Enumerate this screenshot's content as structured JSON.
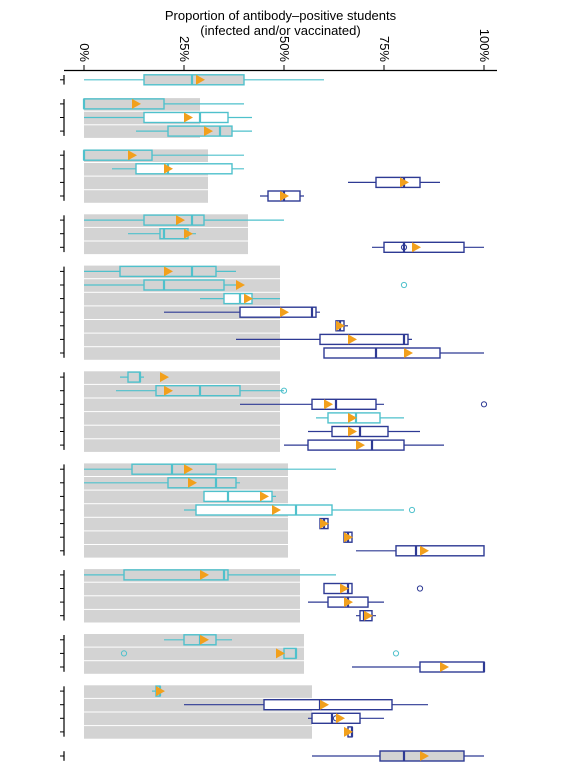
{
  "chart_data": {
    "type": "boxplot",
    "title": "Proportion of antibody–positive students",
    "subtitle": "(infected and/or vaccinated)",
    "xlim": [
      0,
      100
    ],
    "x_ticks": [
      {
        "value": 0,
        "label": "0%"
      },
      {
        "value": 25,
        "label": "25%"
      },
      {
        "value": 50,
        "label": "50%"
      },
      {
        "value": 75,
        "label": "75%"
      },
      {
        "value": 100,
        "label": "100%"
      }
    ],
    "colors": {
      "light_series": "#4fc1cc",
      "dark_series": "#2e3a94",
      "mean_marker": "#f2a01c",
      "shade": "#d3d3d3",
      "axis": "#000000"
    },
    "groups": [
      {
        "shade_to": 0,
        "rows": [
          {
            "series": "light",
            "shaded": true,
            "whisker": [
              0,
              60
            ],
            "q1": 15,
            "median": 27,
            "q3": 40,
            "mean": 29,
            "outliers": []
          }
        ]
      },
      {
        "shade_to": 29,
        "rows": [
          {
            "series": "light",
            "shaded": true,
            "whisker": [
              0,
              40
            ],
            "q1": 0,
            "median": 0,
            "q3": 20,
            "mean": 13,
            "outliers": []
          },
          {
            "series": "light",
            "shaded": false,
            "whisker": [
              0,
              42
            ],
            "q1": 15,
            "median": 29,
            "q3": 36,
            "mean": 26,
            "outliers": []
          },
          {
            "series": "light",
            "shaded": true,
            "whisker": [
              13,
              42
            ],
            "q1": 21,
            "median": 34,
            "q3": 37,
            "mean": 31,
            "outliers": []
          }
        ]
      },
      {
        "shade_to": 31,
        "rows": [
          {
            "series": "light",
            "shaded": true,
            "whisker": [
              0,
              40
            ],
            "q1": 0,
            "median": 0,
            "q3": 17,
            "mean": 12,
            "outliers": []
          },
          {
            "series": "light",
            "shaded": false,
            "whisker": [
              7,
              40
            ],
            "q1": 13,
            "median": 21,
            "q3": 37,
            "mean": 21,
            "outliers": []
          },
          {
            "series": "dark",
            "shaded": false,
            "whisker": [
              66,
              89
            ],
            "q1": 73,
            "median": 80,
            "q3": 84,
            "mean": 80,
            "outliers": []
          },
          {
            "series": "dark",
            "shaded": false,
            "whisker": [
              44,
              55
            ],
            "q1": 46,
            "median": 50,
            "q3": 54,
            "mean": 50,
            "outliers": [],
            "order": 3
          }
        ]
      },
      {
        "shade_to": 41,
        "rows": [
          {
            "series": "light",
            "shaded": true,
            "whisker": [
              0,
              50
            ],
            "q1": 15,
            "median": 27,
            "q3": 30,
            "mean": 24,
            "outliers": []
          },
          {
            "series": "light",
            "shaded": true,
            "whisker": [
              11,
              28
            ],
            "q1": 19,
            "median": 20,
            "q3": 26,
            "mean": 26,
            "outliers": []
          },
          {
            "series": "dark",
            "shaded": false,
            "whisker": [
              72,
              100
            ],
            "q1": 75,
            "median": 80,
            "q3": 95,
            "mean": 83,
            "outliers": [
              80
            ]
          }
        ]
      },
      {
        "shade_to": 49,
        "rows": [
          {
            "series": "light",
            "shaded": true,
            "whisker": [
              0,
              38
            ],
            "q1": 9,
            "median": 27,
            "q3": 33,
            "mean": 21,
            "outliers": []
          },
          {
            "series": "light",
            "shaded": true,
            "whisker": [
              0,
              38
            ],
            "q1": 15,
            "median": 20,
            "q3": 35,
            "mean": 39,
            "outliers": [
              80
            ]
          },
          {
            "series": "light",
            "shaded": false,
            "whisker": [
              29,
              49
            ],
            "q1": 35,
            "median": 39,
            "q3": 42,
            "mean": 41,
            "outliers": []
          },
          {
            "series": "dark",
            "shaded": false,
            "whisker": [
              20,
              59
            ],
            "q1": 39,
            "median": 57,
            "q3": 58,
            "mean": 50,
            "outliers": []
          },
          {
            "series": "dark",
            "shaded": false,
            "whisker": [
              63,
              66
            ],
            "q1": 63,
            "median": 64,
            "q3": 65,
            "mean": 64,
            "outliers": []
          },
          {
            "series": "dark",
            "shaded": false,
            "whisker": [
              38,
              82
            ],
            "q1": 59,
            "median": 80,
            "q3": 81,
            "mean": 67,
            "outliers": []
          },
          {
            "series": "dark",
            "shaded": false,
            "whisker": [
              60,
              100
            ],
            "q1": 60,
            "median": 73,
            "q3": 89,
            "mean": 81,
            "outliers": []
          }
        ]
      },
      {
        "shade_to": 49,
        "rows": [
          {
            "series": "light",
            "shaded": true,
            "whisker": [
              9,
              15
            ],
            "q1": 11,
            "median": 14,
            "q3": 14,
            "mean": 20,
            "outliers": []
          },
          {
            "series": "light",
            "shaded": true,
            "whisker": [
              8,
              50
            ],
            "q1": 18,
            "median": 29,
            "q3": 39,
            "mean": 21,
            "outliers": [
              50
            ]
          },
          {
            "series": "dark",
            "shaded": false,
            "whisker": [
              39,
              75
            ],
            "q1": 57,
            "median": 63,
            "q3": 73,
            "mean": 61,
            "outliers": [
              100
            ]
          },
          {
            "series": "light",
            "shaded": false,
            "whisker": [
              58,
              80
            ],
            "q1": 61,
            "median": 68,
            "q3": 74,
            "mean": 67,
            "outliers": []
          },
          {
            "series": "dark",
            "shaded": false,
            "whisker": [
              56,
              84
            ],
            "q1": 62,
            "median": 69,
            "q3": 76,
            "mean": 67,
            "outliers": []
          },
          {
            "series": "dark",
            "shaded": false,
            "whisker": [
              50,
              90
            ],
            "q1": 56,
            "median": 72,
            "q3": 80,
            "mean": 69,
            "outliers": []
          }
        ]
      },
      {
        "shade_to": 51,
        "rows": [
          {
            "series": "light",
            "shaded": true,
            "whisker": [
              0,
              63
            ],
            "q1": 12,
            "median": 22,
            "q3": 33,
            "mean": 26,
            "outliers": []
          },
          {
            "series": "light",
            "shaded": true,
            "whisker": [
              0,
              39
            ],
            "q1": 21,
            "median": 33,
            "q3": 38,
            "mean": 27,
            "outliers": []
          },
          {
            "series": "light",
            "shaded": false,
            "whisker": [
              30,
              48
            ],
            "q1": 30,
            "median": 36,
            "q3": 47,
            "mean": 45,
            "outliers": []
          },
          {
            "series": "light",
            "shaded": false,
            "whisker": [
              25,
              80
            ],
            "q1": 28,
            "median": 53,
            "q3": 62,
            "mean": 48,
            "outliers": [
              82
            ]
          },
          {
            "series": "dark",
            "shaded": false,
            "whisker": [
              59,
              61
            ],
            "q1": 59,
            "median": 60,
            "q3": 61,
            "mean": 60,
            "outliers": []
          },
          {
            "series": "dark",
            "shaded": false,
            "whisker": [
              65,
              67
            ],
            "q1": 65,
            "median": 66,
            "q3": 67,
            "mean": 66,
            "outliers": []
          },
          {
            "series": "dark",
            "shaded": false,
            "whisker": [
              68,
              100
            ],
            "q1": 78,
            "median": 83,
            "q3": 100,
            "mean": 85,
            "outliers": []
          }
        ]
      },
      {
        "shade_to": 54,
        "rows": [
          {
            "series": "light",
            "shaded": true,
            "whisker": [
              0,
              63
            ],
            "q1": 10,
            "median": 35,
            "q3": 36,
            "mean": 30,
            "outliers": []
          },
          {
            "series": "dark",
            "shaded": false,
            "whisker": [
              60,
              67
            ],
            "q1": 60,
            "median": 66,
            "q3": 67,
            "mean": 65,
            "outliers": [
              84
            ]
          },
          {
            "series": "dark",
            "shaded": false,
            "whisker": [
              56,
              75
            ],
            "q1": 61,
            "median": 66,
            "q3": 71,
            "mean": 66,
            "outliers": []
          },
          {
            "series": "dark",
            "shaded": false,
            "whisker": [
              68,
              73
            ],
            "q1": 69,
            "median": 70,
            "q3": 72,
            "mean": 71,
            "outliers": []
          }
        ]
      },
      {
        "shade_to": 55,
        "rows": [
          {
            "series": "light",
            "shaded": true,
            "whisker": [
              20,
              37
            ],
            "q1": 25,
            "median": 29,
            "q3": 33,
            "mean": 30,
            "outliers": []
          },
          {
            "series": "light",
            "shaded": true,
            "whisker": [
              48,
              53
            ],
            "q1": 50,
            "median": 53,
            "q3": 53,
            "mean": 49,
            "outliers": [
              10,
              78
            ]
          },
          {
            "series": "dark",
            "shaded": false,
            "whisker": [
              67,
              100
            ],
            "q1": 84,
            "median": 100,
            "q3": 100,
            "mean": 90,
            "outliers": []
          }
        ]
      },
      {
        "shade_to": 57,
        "rows": [
          {
            "series": "light",
            "shaded": true,
            "whisker": [
              17,
              20
            ],
            "q1": 18,
            "median": 19,
            "q3": 19,
            "mean": 19,
            "outliers": []
          },
          {
            "series": "dark",
            "shaded": false,
            "whisker": [
              25,
              86
            ],
            "q1": 45,
            "median": 59,
            "q3": 77,
            "mean": 60,
            "outliers": []
          },
          {
            "series": "dark",
            "shaded": false,
            "whisker": [
              56,
              75
            ],
            "q1": 57,
            "median": 62,
            "q3": 69,
            "mean": 64,
            "outliers": [
              63
            ]
          },
          {
            "series": "dark",
            "shaded": false,
            "whisker": [
              66,
              67
            ],
            "q1": 66,
            "median": 67,
            "q3": 67,
            "mean": 66,
            "outliers": []
          }
        ]
      },
      {
        "shade_to": 0,
        "rows": [
          {
            "series": "dark",
            "shaded": true,
            "whisker": [
              57,
              100
            ],
            "q1": 74,
            "median": 80,
            "q3": 95,
            "mean": 85,
            "outliers": []
          }
        ]
      }
    ]
  }
}
